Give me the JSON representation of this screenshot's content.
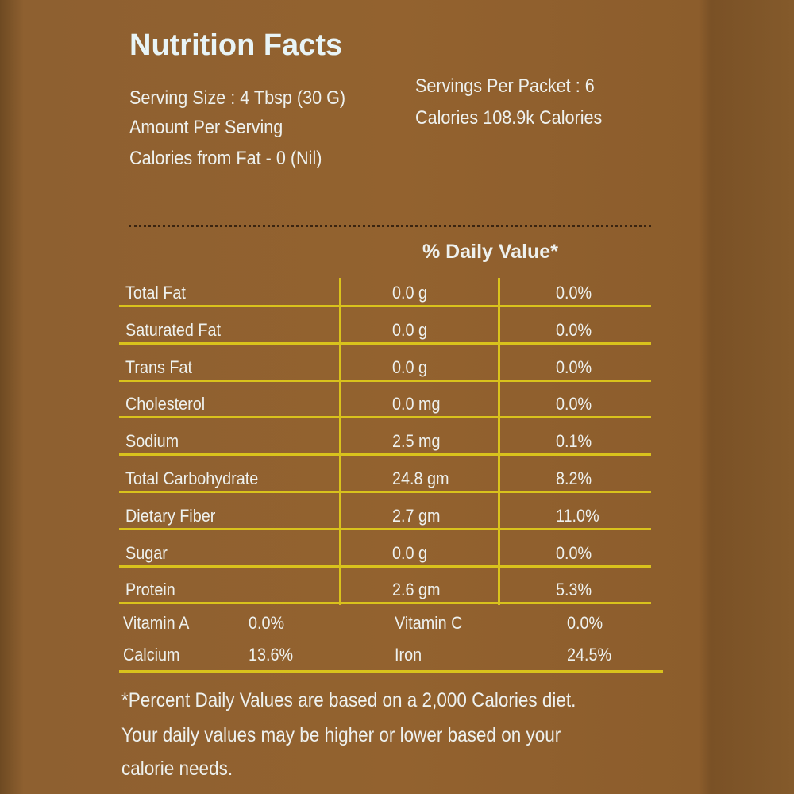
{
  "header": {
    "title": "Nutrition Facts",
    "serving_size": "Serving Size : 4 Tbsp (30 G)",
    "servings_per_packet": "Servings Per Packet : 6",
    "amount_per_serving": "Amount Per Serving",
    "calories": "Calories 108.9k Calories",
    "calories_from_fat": "Calories from Fat - 0 (Nil)"
  },
  "table": {
    "heading": "% Daily Value*",
    "rows": [
      [
        "Total Fat",
        "0.0 g",
        "0.0%"
      ],
      [
        "Saturated Fat",
        "0.0 g",
        "0.0%"
      ],
      [
        "Trans Fat",
        "0.0 g",
        "0.0%"
      ],
      [
        "Cholesterol",
        "0.0 mg",
        "0.0%"
      ],
      [
        "Sodium",
        "2.5 mg",
        "0.1%"
      ],
      [
        "Total Carbohydrate",
        "24.8 gm",
        "8.2%"
      ],
      [
        "Dietary Fiber",
        "2.7 gm",
        "11.0%"
      ],
      [
        "Sugar",
        "0.0 g",
        "0.0%"
      ],
      [
        "Protein",
        "2.6 gm",
        "5.3%"
      ]
    ]
  },
  "vitamins": {
    "rows": [
      [
        "Vitamin A",
        "0.0%",
        "Vitamin C",
        "0.0%"
      ],
      [
        "Calcium",
        "13.6%",
        "Iron",
        "24.5%"
      ]
    ]
  },
  "footnote": [
    "*Percent Daily Values are based on a 2,000 Calories diet.",
    "Your daily values may be higher or lower based on your",
    "calorie needs."
  ]
}
